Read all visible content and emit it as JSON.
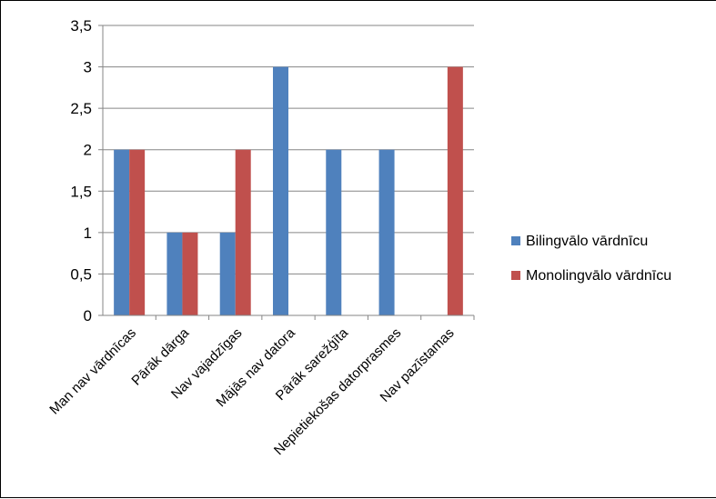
{
  "chart_data": {
    "type": "bar",
    "categories": [
      "Man nav vārdnīcas",
      "Pārāk dārga",
      "Nav vajadzīgas",
      "Mājās nav datora",
      "Pārāk sarežģīta",
      "Nepietiekošas datorprasmes",
      "Nav pazīstamas"
    ],
    "series": [
      {
        "name": "Bilingvālo  vārdnīcu",
        "color": "#4F81BD",
        "values": [
          2,
          1,
          1,
          3,
          2,
          2,
          0
        ]
      },
      {
        "name": "Monolingvālo vārdnīcu",
        "color": "#C0504D",
        "values": [
          2,
          1,
          2,
          0,
          0,
          0,
          3
        ]
      }
    ],
    "y_ticks": [
      "0",
      "0,5",
      "1",
      "1,5",
      "2",
      "2,5",
      "3",
      "3,5"
    ],
    "ylim": [
      0,
      3.5
    ],
    "grid": true,
    "legend": "right"
  }
}
